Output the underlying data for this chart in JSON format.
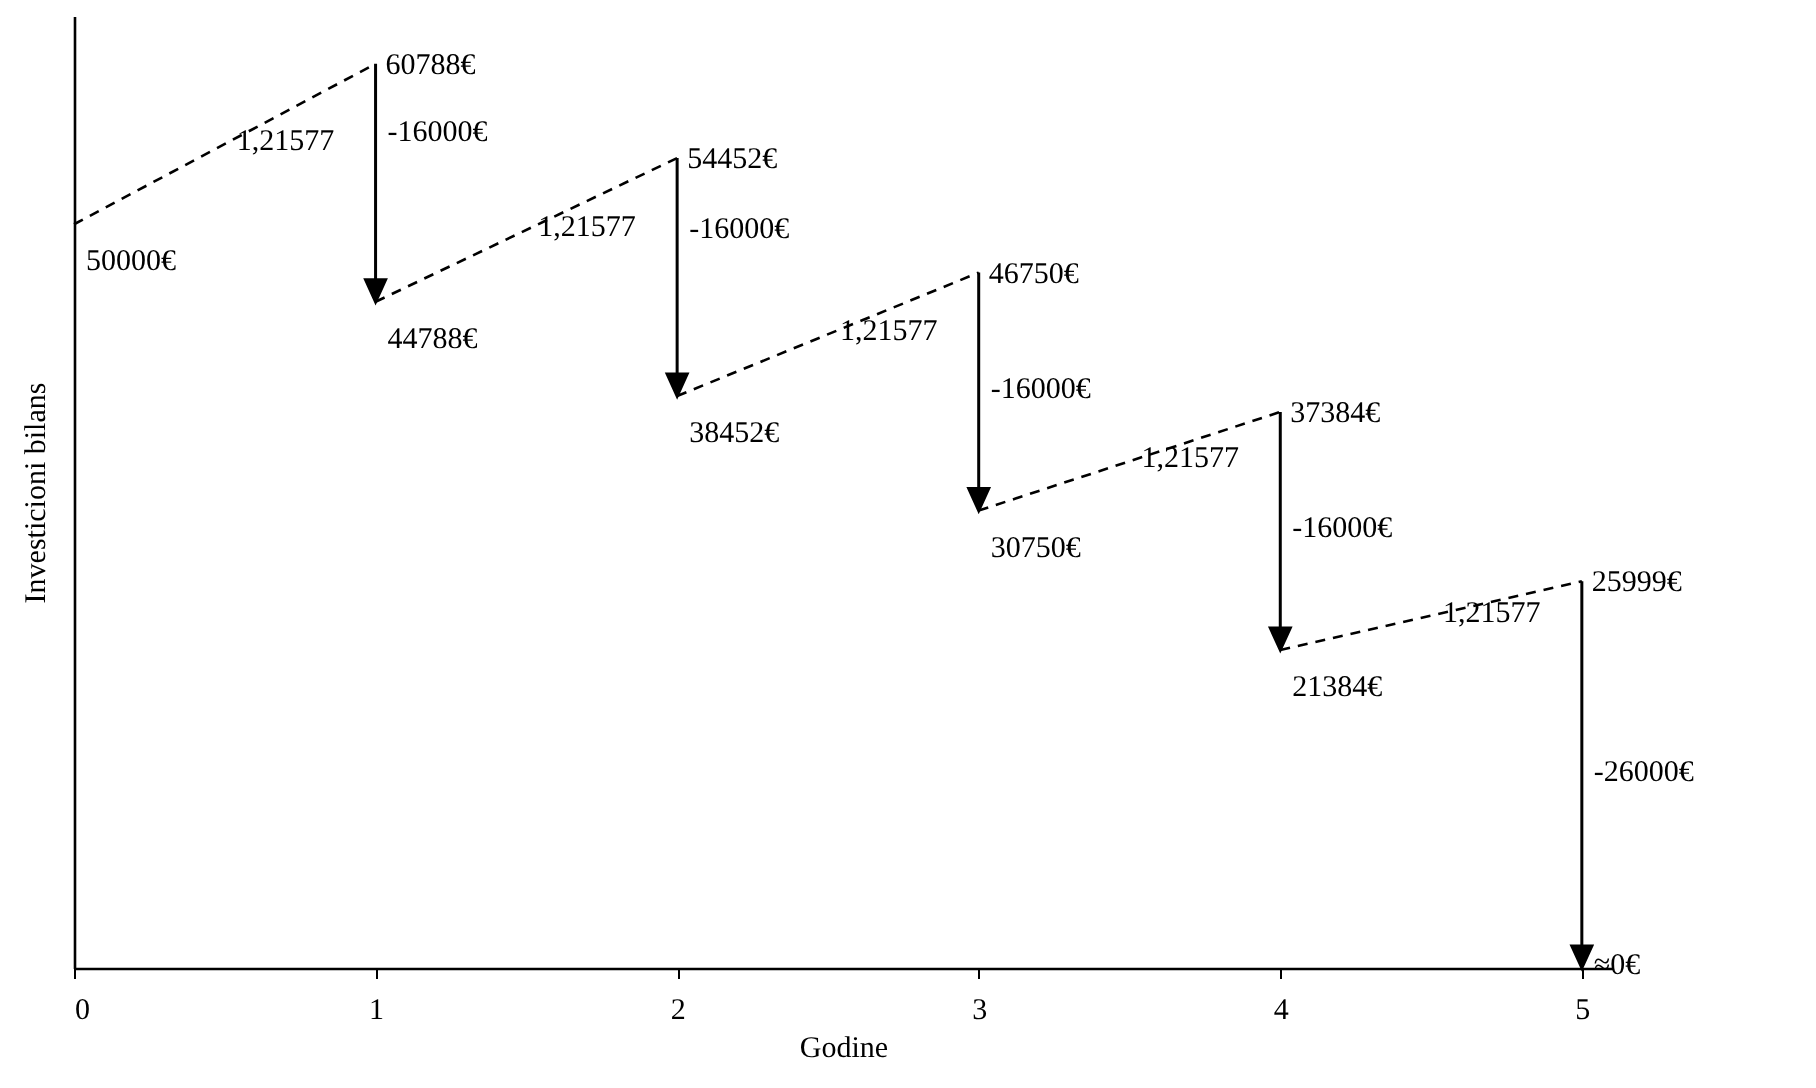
{
  "chart_data": {
    "type": "line",
    "xlabel": "Godine",
    "ylabel": "Investicioni bilans",
    "xlim": [
      0,
      5.1
    ],
    "xticks": [
      0,
      1,
      2,
      3,
      4,
      5
    ],
    "ylim": [
      0,
      64000
    ],
    "tick_labels": "x",
    "series": [
      {
        "line_style": "dashed",
        "color": "#000000",
        "x": [
          0,
          1,
          null,
          1,
          2,
          null,
          2,
          3,
          null,
          3,
          4,
          null,
          4,
          5
        ],
        "values": [
          50000,
          60788,
          null,
          44788,
          54452,
          null,
          38452,
          46750,
          null,
          30750,
          37384,
          null,
          21384,
          25999
        ],
        "value_labels": [
          "50000€",
          "60788€",
          null,
          "44788€",
          "54452€",
          null,
          "38452€",
          "46750€",
          null,
          "30750€",
          "37384€",
          null,
          "21384€",
          "25999€"
        ]
      }
    ],
    "annotations": [
      {
        "text": "1,21577",
        "x": 0.5,
        "y": 55394
      },
      {
        "text": "1,21577",
        "x": 1.5,
        "y": 49620
      },
      {
        "text": "1,21577",
        "x": 2.5,
        "y": 42601
      },
      {
        "text": "1,21577",
        "x": 3.5,
        "y": 34067
      },
      {
        "text": "1,21577",
        "x": 4.5,
        "y": 23691
      },
      {
        "text": "-16000€",
        "x": 1,
        "y": 56000
      },
      {
        "text": "-16000€",
        "x": 2,
        "y": 49500
      },
      {
        "text": "-16000€",
        "x": 3,
        "y": 38750
      },
      {
        "text": "-16000€",
        "x": 4,
        "y": 29384
      },
      "-26000€",
      "≈0€"
    ]
  }
}
